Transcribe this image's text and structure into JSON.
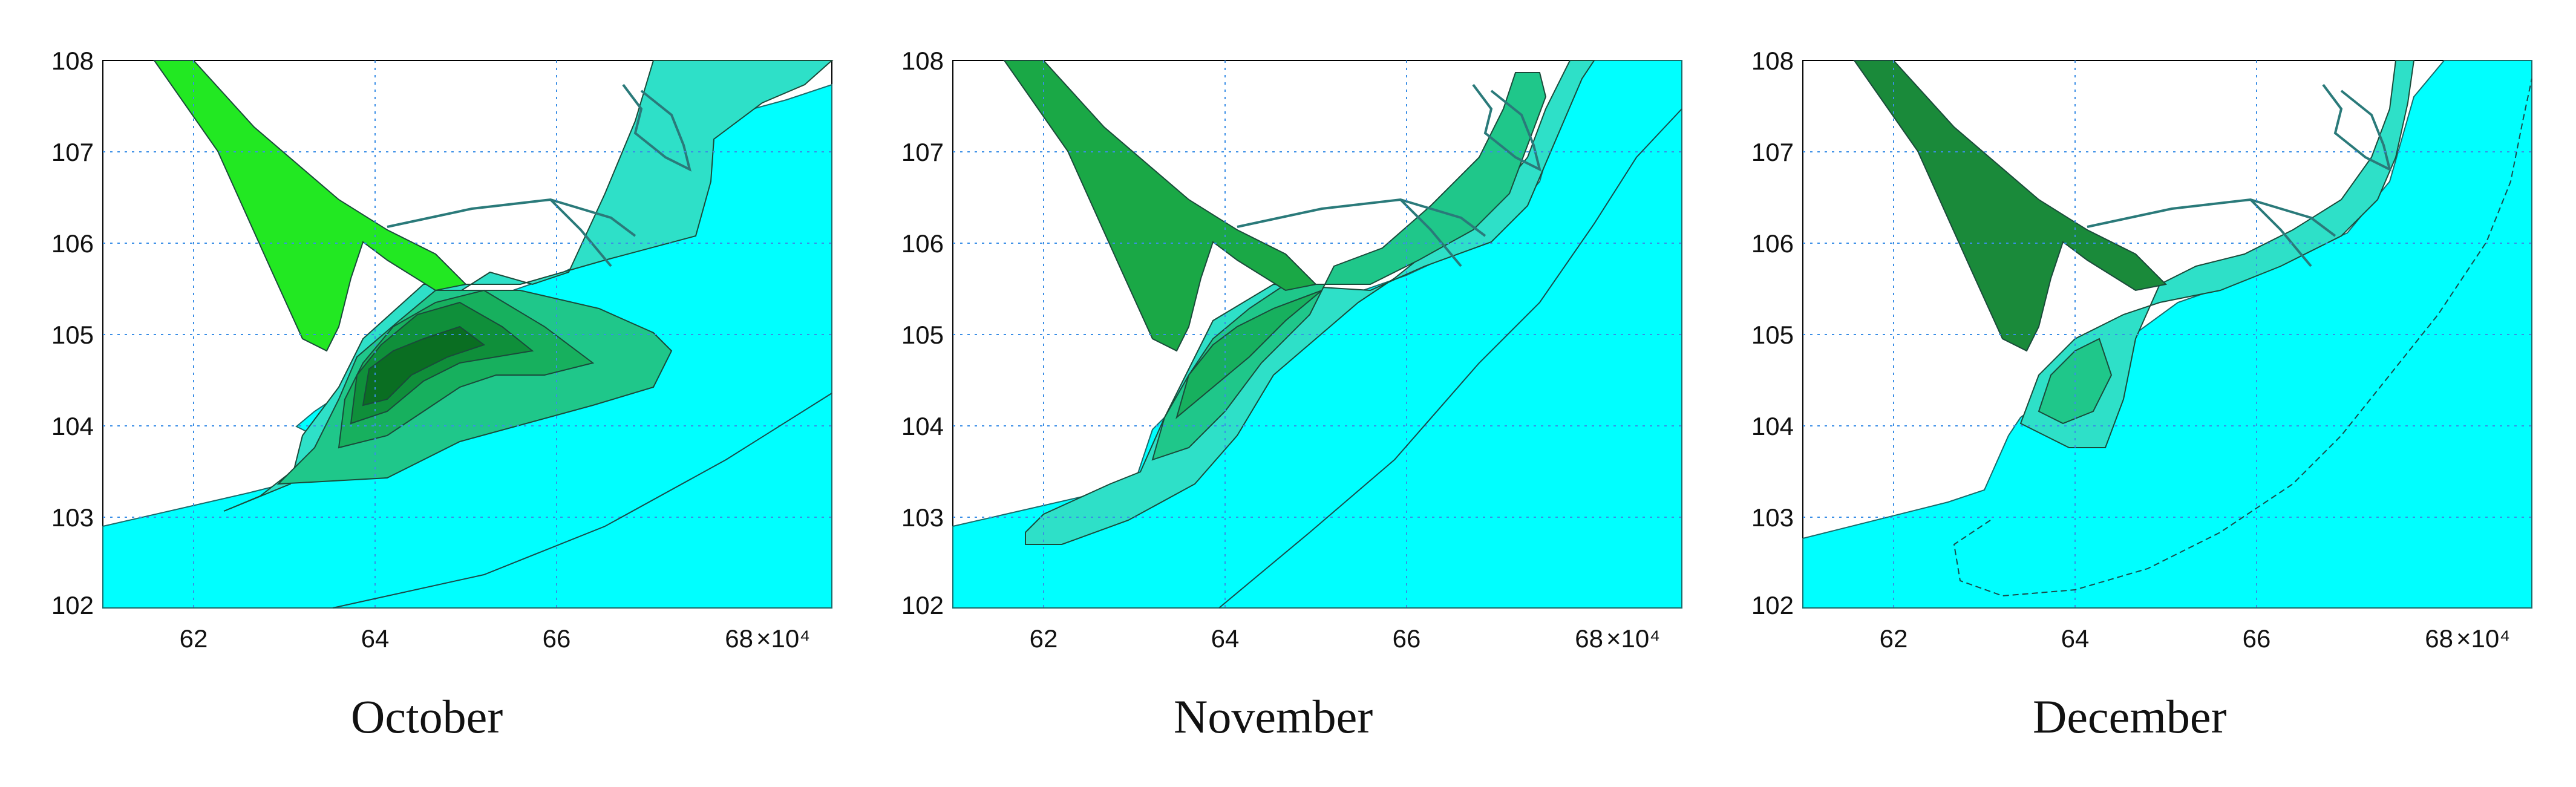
{
  "figure": {
    "panels": [
      {
        "caption": "October",
        "x_ticks": [
          "62",
          "64",
          "66"
        ],
        "x_last_tick": "68",
        "x_unit": "×10⁴",
        "y_ticks": [
          "108",
          "107",
          "106",
          "105",
          "104",
          "103",
          "102"
        ]
      },
      {
        "caption": "November",
        "x_ticks": [
          "62",
          "64",
          "66"
        ],
        "x_last_tick": "68",
        "x_unit": "×10⁴",
        "y_ticks": [
          "108",
          "107",
          "106",
          "105",
          "104",
          "103",
          "102"
        ]
      },
      {
        "caption": "December",
        "x_ticks": [
          "62",
          "64",
          "66"
        ],
        "x_last_tick": "68",
        "x_unit": "×10⁴",
        "y_ticks": [
          "108",
          "107",
          "106",
          "105",
          "104",
          "103",
          "102"
        ]
      }
    ]
  },
  "colors": {
    "sea": "#00ffff",
    "contour_1": "#2ee0c8",
    "contour_2": "#1fc78a",
    "contour_3": "#17b05e",
    "contour_4": "#0f8f3a",
    "contour_5": "#0a6e22",
    "river_october": "#22e822",
    "grid": "#3a8ee6"
  },
  "axes": {
    "x_range": [
      61,
      69
    ],
    "y_range": [
      102,
      108
    ]
  }
}
